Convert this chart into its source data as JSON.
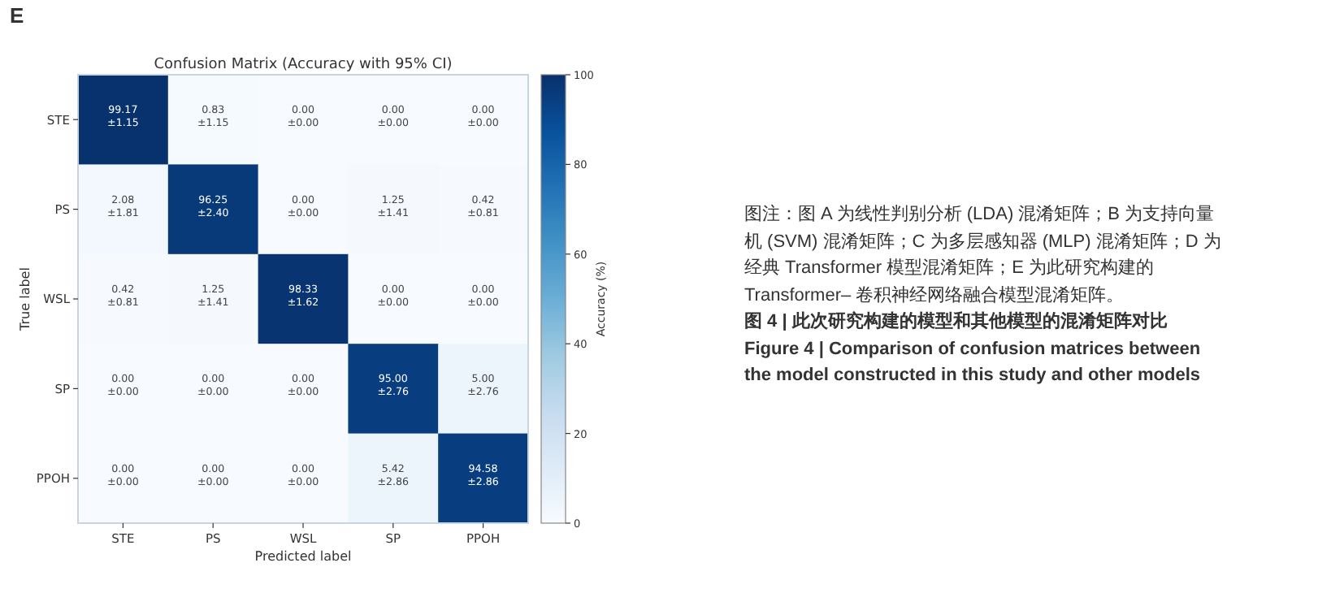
{
  "chart_data": {
    "type": "heatmap",
    "title": "Confusion Matrix (Accuracy with 95% CI)",
    "xlabel": "Predicted label",
    "ylabel": "True label",
    "clabel": "Accuracy (%)",
    "categories": [
      "STE",
      "PS",
      "WSL",
      "SP",
      "PPOH"
    ],
    "y_categories": [
      "STE",
      "PS",
      "WSL",
      "SP",
      "PPOH"
    ],
    "cells": [
      [
        99.17,
        0.83,
        0.0,
        0.0,
        0.0
      ],
      [
        2.08,
        96.25,
        0.0,
        1.25,
        0.42
      ],
      [
        0.42,
        1.25,
        98.33,
        0.0,
        0.0
      ],
      [
        0.0,
        0.0,
        0.0,
        95.0,
        5.0
      ],
      [
        0.0,
        0.0,
        0.0,
        5.42,
        94.58
      ]
    ],
    "cell_labels": [
      [
        "99.17\n±1.15",
        "0.83\n±1.15",
        "0.00\n±0.00",
        "0.00\n±0.00",
        "0.00\n±0.00"
      ],
      [
        "2.08\n±1.81",
        "96.25\n±2.40",
        "0.00\n±0.00",
        "1.25\n±1.41",
        "0.42\n±0.81"
      ],
      [
        "0.42\n±0.81",
        "1.25\n±1.41",
        "98.33\n±1.62",
        "0.00\n±0.00",
        "0.00\n±0.00"
      ],
      [
        "0.00\n±0.00",
        "0.00\n±0.00",
        "0.00\n±0.00",
        "95.00\n±2.76",
        "5.00\n±2.76"
      ],
      [
        "0.00\n±0.00",
        "0.00\n±0.00",
        "0.00\n±0.00",
        "5.42\n±2.86",
        "94.58\n±2.86"
      ]
    ],
    "clim": [
      0,
      100
    ],
    "cticks": [
      0,
      20,
      40,
      60,
      80,
      100
    ],
    "annotations": [
      "E",
      "图注：图 A 为线性判别分析 (LDA) 混淆矩阵；B 为支持向量机 (SVM) 混淆矩阵；C 为多层感知器 (MLP) 混淆矩阵；D 为经典 Transformer 模型混淆矩阵；E 为此研究构建的 Transformer– 卷积神经网络融合模型混淆矩阵。",
      "图 4 | 此次研究构建的模型和其他模型的混淆矩阵对比",
      "Figure 4 | Comparison of confusion matrices between the model constructed in this study and other models"
    ]
  }
}
